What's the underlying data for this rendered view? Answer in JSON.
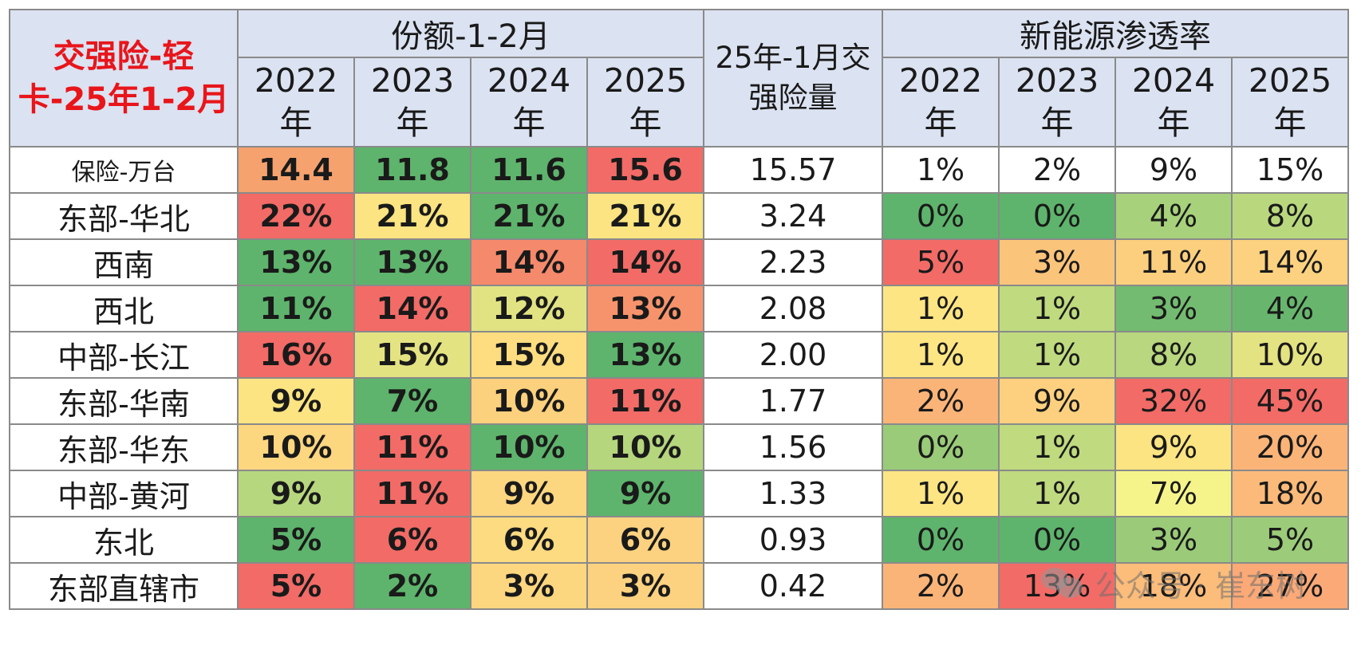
{
  "corner_title": "交强险-轻卡-25年1-2月",
  "group_share": "份额-1-2月",
  "group_volume": "25年-1月交强险量",
  "group_nev": "新能源渗透率",
  "years": [
    "2022年",
    "2023年",
    "2024年",
    "2025年"
  ],
  "watermark": "公众号 · 崔东树",
  "colors": {
    "header_bg": "#dbe2f1",
    "title_red": "#e8151b",
    "grid": "#8a8a8a"
  },
  "chart_data": {
    "type": "heatmap",
    "title": "交强险-轻卡-25年1-2月",
    "rows": [
      {
        "region": "保险-万台",
        "share": [
          "14.4",
          "11.8",
          "11.6",
          "15.6"
        ],
        "volume": "15.57",
        "nev": [
          "1%",
          "2%",
          "9%",
          "15%"
        ]
      },
      {
        "region": "东部-华北",
        "share": [
          "22%",
          "21%",
          "21%",
          "21%"
        ],
        "volume": "3.24",
        "nev": [
          "0%",
          "0%",
          "4%",
          "8%"
        ]
      },
      {
        "region": "西南",
        "share": [
          "13%",
          "13%",
          "14%",
          "14%"
        ],
        "volume": "2.23",
        "nev": [
          "5%",
          "3%",
          "11%",
          "14%"
        ]
      },
      {
        "region": "西北",
        "share": [
          "11%",
          "14%",
          "12%",
          "13%"
        ],
        "volume": "2.08",
        "nev": [
          "1%",
          "1%",
          "3%",
          "4%"
        ]
      },
      {
        "region": "中部-长江",
        "share": [
          "16%",
          "15%",
          "15%",
          "13%"
        ],
        "volume": "2.00",
        "nev": [
          "1%",
          "1%",
          "8%",
          "10%"
        ]
      },
      {
        "region": "东部-华南",
        "share": [
          "9%",
          "7%",
          "10%",
          "11%"
        ],
        "volume": "1.77",
        "nev": [
          "2%",
          "9%",
          "32%",
          "45%"
        ]
      },
      {
        "region": "东部-华东",
        "share": [
          "10%",
          "11%",
          "10%",
          "10%"
        ],
        "volume": "1.56",
        "nev": [
          "0%",
          "1%",
          "9%",
          "20%"
        ]
      },
      {
        "region": "中部-黄河",
        "share": [
          "9%",
          "11%",
          "9%",
          "9%"
        ],
        "volume": "1.33",
        "nev": [
          "1%",
          "1%",
          "7%",
          "18%"
        ]
      },
      {
        "region": "东北",
        "share": [
          "5%",
          "6%",
          "6%",
          "6%"
        ],
        "volume": "0.93",
        "nev": [
          "0%",
          "0%",
          "3%",
          "5%"
        ]
      },
      {
        "region": "东部直辖市",
        "share": [
          "5%",
          "2%",
          "3%",
          "3%"
        ],
        "volume": "0.42",
        "nev": [
          "2%",
          "13%",
          "18%",
          "27%"
        ]
      }
    ],
    "share_colors": [
      [
        "#f5a26e",
        "#5eb46c",
        "#5eb46c",
        "#f26b66"
      ],
      [
        "#f26b66",
        "#fbe481",
        "#5eb46c",
        "#fbe481"
      ],
      [
        "#5eb46c",
        "#5eb46c",
        "#f5896b",
        "#f26b66"
      ],
      [
        "#5eb46c",
        "#f26b66",
        "#e1e383",
        "#f7936c"
      ],
      [
        "#f26b66",
        "#e4e382",
        "#fddd80",
        "#5eb46c"
      ],
      [
        "#fbe481",
        "#5eb46c",
        "#fbd17d",
        "#f26b66"
      ],
      [
        "#fdd680",
        "#f26b66",
        "#5eb46c",
        "#b5d67d"
      ],
      [
        "#b7d77e",
        "#f26b66",
        "#fdd680",
        "#5eb46c"
      ],
      [
        "#5eb46c",
        "#f26b66",
        "#fcdb81",
        "#fcd280"
      ],
      [
        "#f26b66",
        "#5eb46c",
        "#fdd680",
        "#fcd280"
      ]
    ],
    "nev_colors": [
      [
        "#ffffff",
        "#ffffff",
        "#ffffff",
        "#ffffff"
      ],
      [
        "#5eb46c",
        "#5eb46c",
        "#a7d17b",
        "#b9d87e"
      ],
      [
        "#f26b66",
        "#fbc47b",
        "#fccf7e",
        "#fcd280"
      ],
      [
        "#fde583",
        "#bfda7f",
        "#73bb70",
        "#68b66e"
      ],
      [
        "#fde583",
        "#bfda7f",
        "#b8d77e",
        "#e4e382"
      ],
      [
        "#fbb478",
        "#fcd07f",
        "#f26b66",
        "#f26b66"
      ],
      [
        "#9acb79",
        "#bfda7f",
        "#fbe481",
        "#fbb478"
      ],
      [
        "#fde583",
        "#bfda7f",
        "#f5f48b",
        "#fbba79"
      ],
      [
        "#5eb46c",
        "#5eb46c",
        "#9bcb79",
        "#9ccc7a"
      ],
      [
        "#fbb478",
        "#f26b66",
        "#fcbc7a",
        "#fba977"
      ]
    ]
  }
}
